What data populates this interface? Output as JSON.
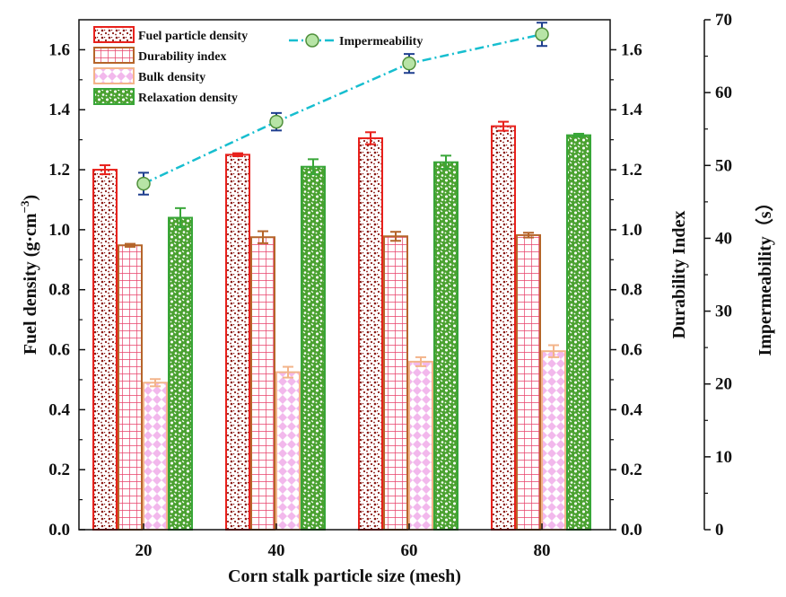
{
  "chart_data": {
    "type": "bar",
    "xlabel": "Corn stalk particle size (mesh)",
    "categories": [
      "20",
      "40",
      "60",
      "80"
    ],
    "y_left": {
      "label_main": "Fuel density (g·cm",
      "label_sup": "−3",
      "label_close": ")",
      "range": [
        0,
        1.7
      ],
      "ticks": [
        "0.0",
        "0.2",
        "0.4",
        "0.6",
        "0.8",
        "1.0",
        "1.2",
        "1.4",
        "1.6"
      ]
    },
    "y_durability": {
      "label": "Durability Index",
      "range": [
        0,
        1.7
      ],
      "ticks": [
        "0.0",
        "0.2",
        "0.4",
        "0.6",
        "0.8",
        "1.0",
        "1.2",
        "1.4",
        "1.6"
      ]
    },
    "y_impermeability": {
      "label": "Impermeability（s）",
      "range": [
        0,
        70
      ],
      "ticks": [
        "0",
        "10",
        "20",
        "30",
        "40",
        "50",
        "60",
        "70"
      ]
    },
    "series": [
      {
        "name": "Fuel particle density",
        "axis": "left",
        "color": "#e8211c",
        "pattern": "dots",
        "values": [
          1.2,
          1.25,
          1.305,
          1.345
        ],
        "errors": [
          0.015,
          0.005,
          0.02,
          0.015
        ]
      },
      {
        "name": "Durability index",
        "axis": "durability",
        "color": "#b5652a",
        "pattern": "grid",
        "values": [
          0.948,
          0.975,
          0.978,
          0.982
        ],
        "errors": [
          0.005,
          0.02,
          0.015,
          0.008
        ]
      },
      {
        "name": "Bulk density",
        "axis": "left",
        "color": "#f3b48a",
        "pattern": "diamond",
        "values": [
          0.49,
          0.525,
          0.56,
          0.595
        ],
        "errors": [
          0.012,
          0.018,
          0.015,
          0.02
        ]
      },
      {
        "name": "Relaxation density",
        "axis": "left",
        "color": "#38a638",
        "pattern": "blob",
        "values": [
          1.04,
          1.21,
          1.225,
          1.315
        ],
        "errors": [
          0.032,
          0.025,
          0.022,
          0.005
        ]
      }
    ],
    "line_series": {
      "name": "Impermeability",
      "axis": "impermeability",
      "color": "#17becf",
      "marker_color": "#b7e4a6",
      "values": [
        47.5,
        56,
        64,
        68
      ],
      "errors": [
        1.5,
        1.2,
        1.3,
        1.6
      ]
    }
  }
}
